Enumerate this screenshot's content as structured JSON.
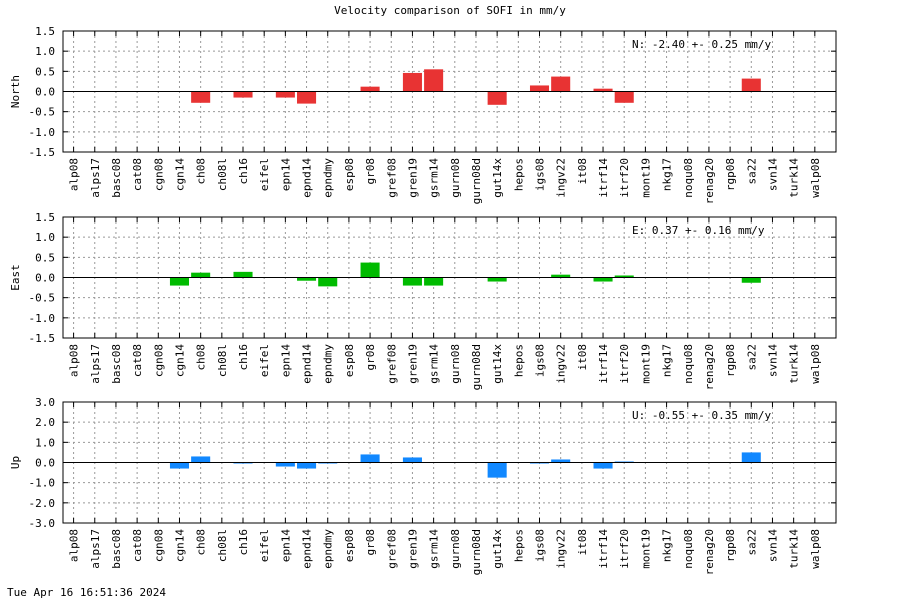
{
  "title": "Velocity comparison of SOFI in mm/y",
  "footer": "Tue Apr 16 16:51:36 2024",
  "chart_data": [
    {
      "type": "bar",
      "ylabel": "North",
      "annotation": "N:  -2.40 +-  0.25 mm/y",
      "color": "#e83333",
      "ylim": [
        -1.5,
        1.5
      ],
      "yticks": [
        1.5,
        1.0,
        0.5,
        0.0,
        -0.5,
        -1.0,
        -1.5
      ],
      "ytick_labels": [
        "1.5",
        "1.0",
        "0.5",
        "0.0",
        "-0.5",
        "-1.0",
        "-1.5"
      ],
      "grid": true,
      "categories": [
        "alp08",
        "alps17",
        "basc08",
        "cat08",
        "cgn08",
        "cgn14",
        "ch08",
        "ch08l",
        "ch16",
        "eifel",
        "epn14",
        "epnd14",
        "epndmy",
        "esp08",
        "gr08",
        "gref08",
        "gren19",
        "gsrm14",
        "gurn08",
        "gurn08d",
        "gut14x",
        "hepos",
        "igs08",
        "ingv22",
        "it08",
        "itrf14",
        "itrf20",
        "mont19",
        "nkg17",
        "noqu08",
        "renag20",
        "rgp08",
        "sa22",
        "svn14",
        "turk14",
        "walp08"
      ],
      "values": [
        0,
        0,
        0,
        0,
        0,
        0,
        -0.28,
        0,
        -0.15,
        0,
        -0.15,
        -0.3,
        0,
        0,
        0.12,
        0,
        0.46,
        0.55,
        0,
        0,
        -0.33,
        0,
        0.15,
        0.37,
        0,
        0.07,
        -0.28,
        0,
        0,
        0,
        0,
        0,
        0.32,
        0,
        0,
        0
      ]
    },
    {
      "type": "bar",
      "ylabel": "East",
      "annotation": "E:   0.37 +-  0.16 mm/y",
      "color": "#00bb00",
      "ylim": [
        -1.5,
        1.5
      ],
      "yticks": [
        1.5,
        1.0,
        0.5,
        0.0,
        -0.5,
        -1.0,
        -1.5
      ],
      "ytick_labels": [
        "1.5",
        "1.0",
        "0.5",
        "0.0",
        "-0.5",
        "-1.0",
        "-1.5"
      ],
      "grid": true,
      "categories": [
        "alp08",
        "alps17",
        "basc08",
        "cat08",
        "cgn08",
        "cgn14",
        "ch08",
        "ch08l",
        "ch16",
        "eifel",
        "epn14",
        "epnd14",
        "epndmy",
        "esp08",
        "gr08",
        "gref08",
        "gren19",
        "gsrm14",
        "gurn08",
        "gurn08d",
        "gut14x",
        "hepos",
        "igs08",
        "ingv22",
        "it08",
        "itrf14",
        "itrf20",
        "mont19",
        "nkg17",
        "noqu08",
        "renag20",
        "rgp08",
        "sa22",
        "svn14",
        "turk14",
        "walp08"
      ],
      "values": [
        0,
        0,
        0,
        0,
        0,
        -0.2,
        0.12,
        0,
        0.14,
        0,
        0,
        -0.08,
        -0.22,
        0,
        0.37,
        0,
        -0.2,
        -0.2,
        0,
        0,
        -0.1,
        0,
        0,
        0.07,
        0,
        -0.1,
        0.05,
        0,
        0,
        0,
        0,
        0,
        -0.13,
        0,
        0,
        0
      ]
    },
    {
      "type": "bar",
      "ylabel": "Up",
      "annotation": "U:  -0.55 +-  0.35 mm/y",
      "color": "#1188ff",
      "ylim": [
        -3.0,
        3.0
      ],
      "yticks": [
        3.0,
        2.0,
        1.0,
        0.0,
        -1.0,
        -2.0,
        -3.0
      ],
      "ytick_labels": [
        "3.0",
        "2.0",
        "1.0",
        "0.0",
        "-1.0",
        "-2.0",
        "-3.0"
      ],
      "grid": true,
      "categories": [
        "alp08",
        "alps17",
        "basc08",
        "cat08",
        "cgn08",
        "cgn14",
        "ch08",
        "ch08l",
        "ch16",
        "eifel",
        "epn14",
        "epnd14",
        "epndmy",
        "esp08",
        "gr08",
        "gref08",
        "gren19",
        "gsrm14",
        "gurn08",
        "gurn08d",
        "gut14x",
        "hepos",
        "igs08",
        "ingv22",
        "it08",
        "itrf14",
        "itrf20",
        "mont19",
        "nkg17",
        "noqu08",
        "renag20",
        "rgp08",
        "sa22",
        "svn14",
        "turk14",
        "walp08"
      ],
      "values": [
        0,
        0,
        0,
        0,
        0,
        -0.3,
        0.3,
        0,
        -0.05,
        0,
        -0.2,
        -0.3,
        -0.05,
        0,
        0.4,
        0,
        0.25,
        0,
        0,
        0,
        -0.75,
        0,
        -0.05,
        0.15,
        0,
        -0.3,
        0.05,
        0,
        0,
        0,
        0,
        0,
        0.5,
        0,
        0,
        0
      ]
    }
  ]
}
